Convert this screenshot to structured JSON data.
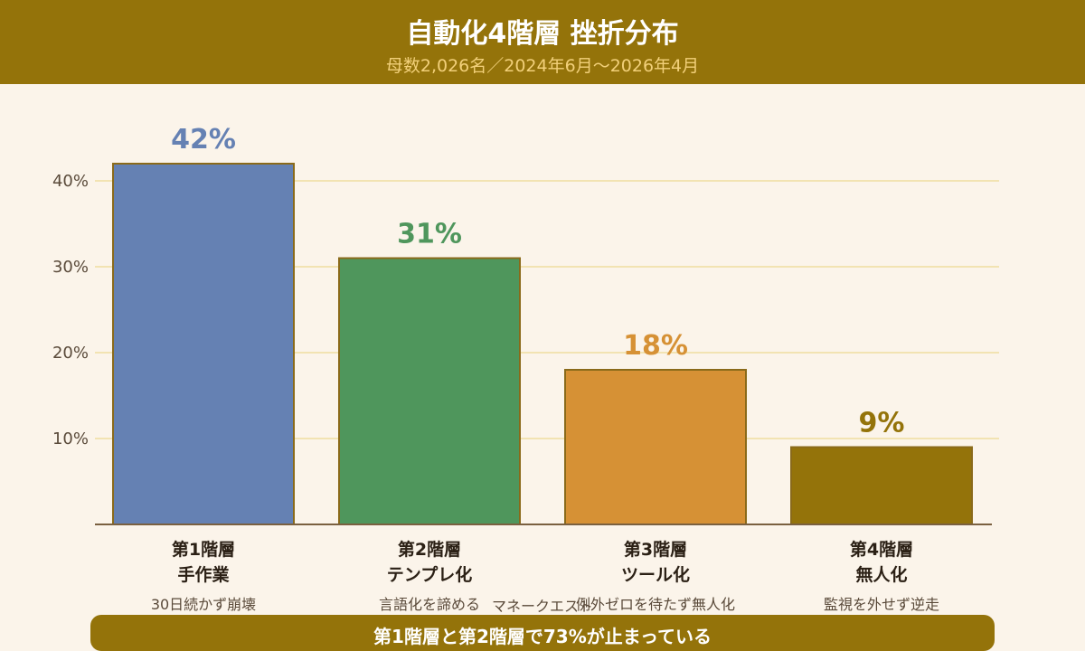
{
  "header": {
    "title": "自動化4階層 挫折分布",
    "subtitle": "母数2,026名／2024年6月～2026年4月"
  },
  "chart_data": {
    "type": "bar",
    "categories": [
      "第1階層 手作業",
      "第2階層 テンプレ化",
      "第3階層 ツール化",
      "第4階層 無人化"
    ],
    "values": [
      42,
      31,
      18,
      9
    ],
    "value_labels": [
      "42%",
      "31%",
      "18%",
      "9%"
    ],
    "y_ticks": [
      "10%",
      "20%",
      "30%",
      "40%"
    ],
    "ylim": [
      0,
      42
    ],
    "grid": true,
    "colors": [
      "#6581b3",
      "#4f965c",
      "#d69135",
      "#94730a"
    ],
    "bars": [
      {
        "tier": "第1階層",
        "name": "手作業",
        "desc": "30日続かず崩壊"
      },
      {
        "tier": "第2階層",
        "name": "テンプレ化",
        "desc": "言語化を諦める"
      },
      {
        "tier": "第3階層",
        "name": "ツール化",
        "desc": "例外ゼロを待たず無人化"
      },
      {
        "tier": "第4階層",
        "name": "無人化",
        "desc": "監視を外せず逆走"
      }
    ]
  },
  "overlap_note": "マネークエスト",
  "footer": {
    "text": "第1階層と第2階層で73%が止まっている"
  }
}
